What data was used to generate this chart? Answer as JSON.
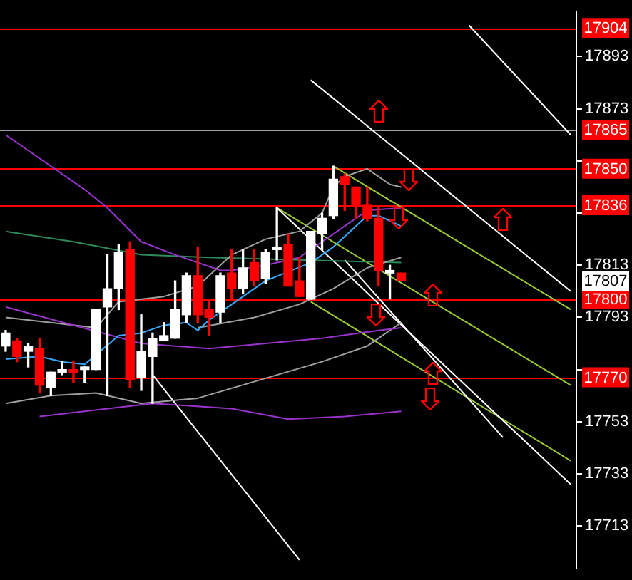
{
  "chart_data": {
    "type": "candlestick",
    "categories": [
      null,
      null,
      null,
      null,
      null,
      null,
      null,
      null,
      null,
      null,
      null,
      null,
      null,
      null,
      null,
      null,
      null,
      null,
      null,
      null,
      null,
      null,
      null,
      null,
      null,
      null,
      null,
      null,
      null,
      null,
      null,
      null,
      null,
      null,
      null,
      null,
      null,
      null,
      null,
      null,
      null,
      null,
      null,
      null,
      null,
      null,
      null,
      null,
      null,
      null,
      null
    ],
    "ohlc": [
      [
        17782,
        17788,
        17780,
        17787
      ],
      [
        17784,
        17785,
        17776,
        17778
      ],
      [
        17780,
        17783,
        17774,
        17782
      ],
      [
        17781,
        17785,
        17764,
        17767
      ],
      [
        17766,
        17772,
        17763,
        17772
      ],
      [
        17772,
        17776,
        17771,
        17773
      ],
      [
        17773,
        17776,
        17768,
        17772
      ],
      [
        17773,
        17774,
        17768,
        17774
      ],
      [
        17773,
        17796,
        17773,
        17796
      ],
      [
        17797,
        17817,
        17763,
        17804
      ],
      [
        17804,
        17821,
        17796,
        17818
      ],
      [
        17819,
        17822,
        17766,
        17769
      ],
      [
        17770,
        17794,
        17765,
        17780
      ],
      [
        17778,
        17787,
        17760,
        17785
      ],
      [
        17784,
        17791,
        17784,
        17786
      ],
      [
        17785,
        17807,
        17785,
        17796
      ],
      [
        17794,
        17810,
        17791,
        17809
      ],
      [
        17809,
        17820,
        17791,
        17794
      ],
      [
        17796,
        17800,
        17786,
        17793
      ],
      [
        17795,
        17810,
        17791,
        17809
      ],
      [
        17810,
        17819,
        17800,
        17804
      ],
      [
        17804,
        17819,
        17802,
        17812
      ],
      [
        17814,
        17819,
        17805,
        17807
      ],
      [
        17808,
        17819,
        17806,
        17818
      ],
      [
        17819,
        17835,
        17815,
        17820
      ],
      [
        17821,
        17825,
        17805,
        17805
      ],
      [
        17807,
        17816,
        17801,
        17801
      ],
      [
        17800,
        17826,
        17800,
        17826
      ],
      [
        17825,
        17833,
        17819,
        17831
      ],
      [
        17832,
        17851,
        17831,
        17846
      ],
      [
        17847,
        17848,
        17834,
        17844
      ],
      [
        17843,
        17843,
        17831,
        17836
      ],
      [
        17836,
        17843,
        17830,
        17831
      ],
      [
        17831,
        17835,
        17805,
        17811
      ],
      [
        17810,
        17813,
        17800,
        17811
      ],
      [
        17810,
        17810,
        17807,
        17807
      ],
      null,
      null,
      null,
      null,
      null,
      null,
      null,
      null,
      null,
      null,
      null,
      null,
      null,
      null,
      null
    ],
    "series": [
      {
        "type": "line",
        "color": "#33aaff",
        "values": [
          17777,
          null,
          null,
          17778,
          null,
          17776,
          null,
          17775,
          null,
          null,
          17786,
          null,
          17787,
          null,
          17790,
          null,
          17791,
          17788,
          17792,
          17795,
          null,
          17801,
          null,
          17807,
          null,
          null,
          null,
          17814,
          null,
          17820,
          null,
          17828,
          17832,
          17832,
          17830,
          17828,
          null,
          null,
          null,
          null,
          null,
          null,
          null,
          null,
          null,
          null,
          null,
          null,
          null,
          null,
          null
        ]
      },
      {
        "type": "line",
        "color": "#9933cc",
        "values": [
          17863,
          null,
          null,
          null,
          null,
          null,
          null,
          17842,
          null,
          17835,
          null,
          null,
          17822,
          null,
          null,
          17817,
          null,
          null,
          null,
          17811,
          17811,
          null,
          null,
          17813,
          null,
          null,
          17816,
          null,
          17822,
          null,
          17828,
          null,
          17834,
          null,
          null,
          17835,
          null,
          null,
          null,
          null,
          null,
          null,
          null,
          null,
          null,
          null,
          null,
          null,
          null,
          null,
          null
        ]
      },
      {
        "type": "line",
        "color": "#9933cc",
        "values": [
          17797,
          null,
          null,
          null,
          null,
          null,
          17790,
          null,
          null,
          null,
          null,
          null,
          17783,
          null,
          null,
          null,
          null,
          null,
          17781,
          null,
          null,
          null,
          null,
          17783,
          null,
          null,
          null,
          null,
          17785,
          null,
          null,
          null,
          null,
          17788,
          null,
          17789,
          null,
          null,
          null,
          null,
          null,
          null,
          null,
          null,
          null,
          null,
          null,
          null,
          null,
          null,
          null
        ]
      },
      {
        "type": "line",
        "color": "#9933cc",
        "values": [
          null,
          null,
          null,
          17755,
          null,
          null,
          null,
          null,
          null,
          null,
          null,
          null,
          null,
          17760,
          null,
          null,
          null,
          null,
          null,
          null,
          17758,
          null,
          null,
          null,
          null,
          17754,
          null,
          null,
          null,
          null,
          17755,
          null,
          null,
          null,
          null,
          17757,
          null,
          null,
          null,
          null,
          null,
          null,
          null,
          null,
          null,
          null,
          null,
          null,
          null,
          null,
          null
        ]
      },
      {
        "type": "line",
        "color": "#a0a0a0",
        "values": [
          17793,
          null,
          null,
          null,
          null,
          null,
          null,
          null,
          17789,
          null,
          17799,
          null,
          null,
          null,
          17801,
          null,
          null,
          17805,
          null,
          null,
          17817,
          null,
          null,
          17823,
          null,
          null,
          17826,
          null,
          17833,
          17843,
          17847,
          null,
          17850,
          null,
          17844,
          17843,
          null,
          null,
          null,
          null,
          null,
          null,
          null,
          null,
          null,
          null,
          null,
          null,
          null,
          null,
          null
        ]
      },
      {
        "type": "line",
        "color": "#a0a0a0",
        "values": [
          null,
          null,
          null,
          null,
          null,
          null,
          null,
          null,
          null,
          null,
          null,
          null,
          null,
          null,
          null,
          null,
          null,
          17789,
          null,
          null,
          null,
          null,
          17793,
          null,
          null,
          null,
          17798,
          null,
          null,
          17804,
          null,
          null,
          17812,
          null,
          null,
          17816,
          null,
          null,
          null,
          null,
          null,
          null,
          null,
          null,
          null,
          null,
          null,
          null,
          null,
          null,
          null
        ]
      },
      {
        "type": "line",
        "color": "#a0a0a0",
        "values": [
          17760,
          null,
          null,
          null,
          17763,
          null,
          null,
          null,
          17764,
          null,
          null,
          null,
          17760,
          null,
          null,
          null,
          null,
          17762,
          null,
          null,
          null,
          null,
          null,
          null,
          null,
          null,
          null,
          null,
          17776,
          null,
          null,
          null,
          17782,
          null,
          null,
          17791,
          null,
          null,
          null,
          null,
          null,
          null,
          null,
          null,
          null,
          null,
          null,
          null,
          null,
          null,
          null
        ]
      },
      {
        "type": "line",
        "color": "#2e8b57",
        "values": [
          17826,
          null,
          null,
          null,
          null,
          null,
          17822,
          null,
          null,
          null,
          null,
          null,
          17817,
          null,
          null,
          null,
          null,
          null,
          17816,
          null,
          null,
          null,
          null,
          null,
          null,
          null,
          null,
          null,
          null,
          null,
          null,
          null,
          null,
          null,
          null,
          17814,
          null,
          null,
          null,
          null,
          null,
          null,
          null,
          null,
          null,
          null,
          null,
          null,
          null,
          null,
          null
        ]
      },
      {
        "type": "line",
        "color": "#ffffff",
        "values": [
          null,
          null,
          null,
          null,
          null,
          null,
          null,
          null,
          null,
          null,
          null,
          null,
          null,
          null,
          null,
          null,
          null,
          null,
          null,
          null,
          null,
          null,
          null,
          null,
          null,
          null,
          null,
          null,
          null,
          null,
          null,
          null,
          null,
          null,
          null,
          null,
          null,
          null,
          null,
          null,
          null,
          17905,
          null,
          null,
          null,
          null,
          null,
          null,
          null,
          null,
          17863
        ]
      },
      {
        "type": "line",
        "color": "#ffffff",
        "values": [
          null,
          null,
          null,
          null,
          null,
          null,
          null,
          null,
          null,
          null,
          null,
          null,
          null,
          null,
          null,
          null,
          null,
          null,
          null,
          null,
          null,
          null,
          null,
          null,
          null,
          null,
          null,
          17884,
          null,
          null,
          null,
          null,
          null,
          null,
          null,
          null,
          null,
          null,
          null,
          null,
          null,
          null,
          null,
          null,
          null,
          null,
          null,
          null,
          null,
          null,
          17803
        ]
      },
      {
        "type": "line",
        "color": "#ffffff",
        "values": [
          null,
          null,
          null,
          null,
          null,
          null,
          null,
          null,
          null,
          null,
          null,
          null,
          null,
          null,
          null,
          null,
          null,
          null,
          null,
          null,
          null,
          null,
          null,
          null,
          17835,
          null,
          null,
          null,
          null,
          null,
          null,
          null,
          null,
          null,
          null,
          null,
          null,
          null,
          null,
          null,
          null,
          null,
          null,
          null,
          null,
          null,
          null,
          null,
          null,
          null,
          17729
        ]
      },
      {
        "type": "line",
        "color": "#ffffff",
        "values": [
          null,
          null,
          null,
          null,
          null,
          null,
          null,
          null,
          null,
          null,
          null,
          null,
          null,
          null,
          null,
          null,
          null,
          null,
          null,
          null,
          null,
          null,
          null,
          null,
          null,
          null,
          null,
          null,
          null,
          null,
          17815,
          null,
          null,
          null,
          null,
          null,
          null,
          null,
          null,
          null,
          null,
          null,
          null,
          null,
          17747,
          null,
          null,
          null,
          null,
          null,
          null
        ]
      },
      {
        "type": "line",
        "color": "#ffffff",
        "values": [
          null,
          null,
          null,
          null,
          null,
          null,
          null,
          null,
          null,
          null,
          null,
          null,
          null,
          17771,
          null,
          null,
          null,
          null,
          null,
          null,
          null,
          null,
          null,
          null,
          null,
          null,
          17700,
          null,
          null,
          null,
          null,
          null,
          null,
          null,
          null,
          null,
          null,
          null,
          null,
          null,
          null,
          null,
          null,
          null,
          null,
          null,
          null,
          null,
          null,
          null,
          null
        ]
      },
      {
        "type": "line",
        "color": "#99cc33",
        "values": [
          null,
          null,
          null,
          null,
          null,
          null,
          null,
          null,
          null,
          null,
          null,
          null,
          null,
          null,
          null,
          null,
          null,
          null,
          null,
          null,
          null,
          null,
          null,
          null,
          null,
          null,
          null,
          null,
          null,
          17851,
          null,
          null,
          null,
          null,
          null,
          null,
          null,
          null,
          null,
          null,
          null,
          null,
          null,
          null,
          null,
          null,
          null,
          null,
          null,
          null,
          17796
        ]
      },
      {
        "type": "line",
        "color": "#99cc33",
        "values": [
          null,
          null,
          null,
          null,
          null,
          null,
          null,
          null,
          null,
          null,
          null,
          null,
          null,
          null,
          null,
          null,
          null,
          null,
          null,
          null,
          null,
          null,
          null,
          null,
          17835,
          null,
          null,
          null,
          null,
          null,
          null,
          null,
          null,
          null,
          null,
          null,
          null,
          null,
          null,
          null,
          null,
          null,
          null,
          null,
          null,
          null,
          null,
          null,
          null,
          null,
          17767
        ]
      },
      {
        "type": "line",
        "color": "#99cc33",
        "values": [
          null,
          null,
          null,
          null,
          null,
          null,
          null,
          null,
          null,
          null,
          null,
          null,
          null,
          null,
          null,
          null,
          null,
          null,
          null,
          null,
          null,
          null,
          null,
          null,
          null,
          null,
          null,
          17799,
          null,
          null,
          null,
          null,
          null,
          null,
          null,
          null,
          null,
          null,
          null,
          null,
          null,
          null,
          null,
          null,
          null,
          null,
          null,
          null,
          null,
          null,
          17738
        ]
      }
    ],
    "ylim": [
      17697,
      17910
    ],
    "yticks": [
      17713,
      17733,
      17753,
      {
        "value": 17773,
        "label": null
      },
      17793,
      17813,
      {
        "value": 17833,
        "label": null
      },
      {
        "value": 17853,
        "label": null
      },
      17873,
      17893
    ],
    "tick_labels": "y",
    "ref_lines": [
      {
        "axis": "y",
        "value": 17904,
        "label": "17904",
        "color": "#ff0000"
      },
      {
        "axis": "y",
        "value": 17865,
        "label": "17865",
        "color": "#a0a0a0"
      },
      {
        "axis": "y",
        "value": 17850,
        "label": "17850",
        "color": "#ff0000"
      },
      {
        "axis": "y",
        "value": 17836,
        "label": "17836",
        "color": "#ff0000"
      },
      {
        "axis": "y",
        "value": 17800,
        "label": "17800",
        "color": "#ff0000"
      },
      {
        "axis": "y",
        "value": 17770,
        "label": "17770",
        "color": "#ff0000"
      }
    ],
    "annotations": [
      "17807"
    ]
  }
}
